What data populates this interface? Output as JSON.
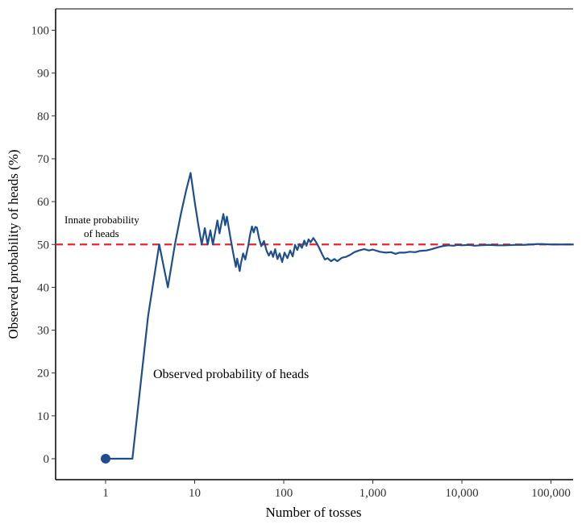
{
  "chart_data": {
    "type": "line",
    "title": "",
    "xlabel": "Number of tosses",
    "ylabel": "Observed probability of heads (%)",
    "x_scale": "log",
    "xlim": [
      1,
      180000
    ],
    "ylim": [
      -5,
      105
    ],
    "grid": false,
    "x_ticks": [
      {
        "value": 1,
        "label": "1"
      },
      {
        "value": 10,
        "label": "10"
      },
      {
        "value": 100,
        "label": "100"
      },
      {
        "value": 1000,
        "label": "1,000"
      },
      {
        "value": 10000,
        "label": "10,000"
      },
      {
        "value": 100000,
        "label": "100,000"
      }
    ],
    "y_ticks": [
      {
        "value": 0,
        "label": "0"
      },
      {
        "value": 10,
        "label": "10"
      },
      {
        "value": 20,
        "label": "20"
      },
      {
        "value": 30,
        "label": "30"
      },
      {
        "value": 40,
        "label": "40"
      },
      {
        "value": 50,
        "label": "50"
      },
      {
        "value": 60,
        "label": "60"
      },
      {
        "value": 70,
        "label": "70"
      },
      {
        "value": 80,
        "label": "80"
      },
      {
        "value": 90,
        "label": "90"
      },
      {
        "value": 100,
        "label": "100"
      }
    ],
    "reference_line": {
      "y": 50,
      "color": "#e8262b",
      "style": "dashed",
      "label_line1": "Innate probability",
      "label_line2": "of heads"
    },
    "series": [
      {
        "name": "Observed probability of heads",
        "color": "#1f4e8c",
        "start_point": {
          "x": 1,
          "y": 0
        },
        "points": [
          [
            1,
            0
          ],
          [
            2,
            0
          ],
          [
            3,
            33.3
          ],
          [
            4,
            50
          ],
          [
            5,
            40
          ],
          [
            6,
            50
          ],
          [
            7,
            57.1
          ],
          [
            8,
            62.5
          ],
          [
            9,
            66.7
          ],
          [
            10,
            60
          ],
          [
            11,
            54.5
          ],
          [
            12,
            50
          ],
          [
            13,
            53.8
          ],
          [
            14,
            50
          ],
          [
            15,
            53.3
          ],
          [
            16,
            50
          ],
          [
            17,
            52.9
          ],
          [
            18,
            55.6
          ],
          [
            19,
            52.6
          ],
          [
            20,
            55
          ],
          [
            21,
            57.1
          ],
          [
            22,
            54.5
          ],
          [
            23,
            56.5
          ],
          [
            24,
            54.2
          ],
          [
            25,
            52
          ],
          [
            26,
            50
          ],
          [
            27,
            48.1
          ],
          [
            28,
            46.4
          ],
          [
            29,
            44.8
          ],
          [
            30,
            46.7
          ],
          [
            31,
            45.2
          ],
          [
            32,
            43.8
          ],
          [
            33,
            45.5
          ],
          [
            35,
            47.9
          ],
          [
            37,
            46.5
          ],
          [
            40,
            49.8
          ],
          [
            42,
            52.4
          ],
          [
            44,
            54.2
          ],
          [
            46,
            52.8
          ],
          [
            48,
            54.1
          ],
          [
            50,
            53.9
          ],
          [
            53,
            51.3
          ],
          [
            56,
            49.6
          ],
          [
            60,
            50.8
          ],
          [
            64,
            48.6
          ],
          [
            68,
            47.4
          ],
          [
            72,
            48.4
          ],
          [
            76,
            47.1
          ],
          [
            80,
            48.9
          ],
          [
            85,
            46.6
          ],
          [
            90,
            47.9
          ],
          [
            96,
            45.9
          ],
          [
            102,
            48.1
          ],
          [
            110,
            46.8
          ],
          [
            118,
            48.6
          ],
          [
            126,
            47.2
          ],
          [
            134,
            49.9
          ],
          [
            142,
            48.7
          ],
          [
            150,
            50.1
          ],
          [
            160,
            49.2
          ],
          [
            170,
            50.9
          ],
          [
            180,
            49.7
          ],
          [
            190,
            51.2
          ],
          [
            200,
            50.5
          ],
          [
            215,
            51.5
          ],
          [
            230,
            50.6
          ],
          [
            250,
            49.2
          ],
          [
            270,
            47.7
          ],
          [
            290,
            46.5
          ],
          [
            310,
            46.8
          ],
          [
            340,
            46.1
          ],
          [
            370,
            46.6
          ],
          [
            400,
            46.1
          ],
          [
            450,
            46.9
          ],
          [
            500,
            47.1
          ],
          [
            560,
            47.6
          ],
          [
            620,
            48.2
          ],
          [
            700,
            48.6
          ],
          [
            800,
            48.9
          ],
          [
            900,
            48.6
          ],
          [
            1000,
            48.8
          ],
          [
            1200,
            48.3
          ],
          [
            1400,
            48.1
          ],
          [
            1600,
            48.2
          ],
          [
            1800,
            47.8
          ],
          [
            2000,
            48.1
          ],
          [
            2300,
            48.1
          ],
          [
            2600,
            48.3
          ],
          [
            3000,
            48.2
          ],
          [
            3400,
            48.5
          ],
          [
            4000,
            48.6
          ],
          [
            4600,
            48.9
          ],
          [
            5300,
            49.3
          ],
          [
            6000,
            49.6
          ],
          [
            7000,
            49.8
          ],
          [
            8000,
            49.7
          ],
          [
            9000,
            49.9
          ],
          [
            10000,
            49.8
          ],
          [
            12000,
            49.9
          ],
          [
            14000,
            49.7
          ],
          [
            16000,
            49.8
          ],
          [
            20000,
            49.9
          ],
          [
            25000,
            49.8
          ],
          [
            30000,
            49.8
          ],
          [
            40000,
            49.9
          ],
          [
            50000,
            49.9
          ],
          [
            60000,
            50
          ],
          [
            70000,
            50.1
          ],
          [
            80000,
            50.1
          ],
          [
            100000,
            50
          ],
          [
            130000,
            50
          ],
          [
            180000,
            50
          ]
        ]
      }
    ]
  }
}
